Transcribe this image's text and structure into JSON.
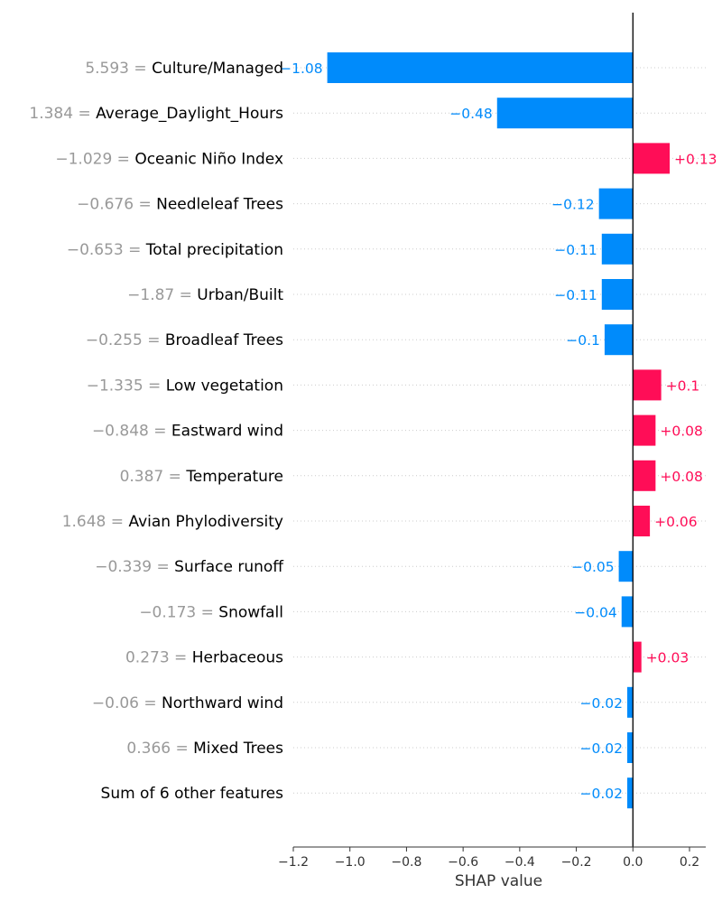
{
  "chart_data": {
    "type": "bar",
    "orientation": "horizontal",
    "xlabel": "SHAP value",
    "xlim": [
      -1.2,
      0.26
    ],
    "xticks": [
      -1.2,
      -1.0,
      -0.8,
      -0.6,
      -0.4,
      -0.2,
      0.0,
      0.2
    ],
    "xtick_labels": [
      "−1.2",
      "−1.0",
      "−0.8",
      "−0.6",
      "−0.4",
      "−0.2",
      "0.0",
      "0.2"
    ],
    "grid": "dotted horizontal row guides",
    "colors": {
      "positive": "#ff0d57",
      "negative": "#008bfb"
    },
    "features": [
      {
        "value_text": "5.593",
        "name": "Culture/Managed",
        "shap": -1.08,
        "label": "−1.08"
      },
      {
        "value_text": "1.384",
        "name": "Average_Daylight_Hours",
        "shap": -0.48,
        "label": "−0.48"
      },
      {
        "value_text": "−1.029",
        "name": "Oceanic Niño Index",
        "shap": 0.13,
        "label": "+0.13"
      },
      {
        "value_text": "−0.676",
        "name": "Needleleaf Trees",
        "shap": -0.12,
        "label": "−0.12"
      },
      {
        "value_text": "−0.653",
        "name": "Total precipitation",
        "shap": -0.11,
        "label": "−0.11"
      },
      {
        "value_text": "−1.87",
        "name": "Urban/Built",
        "shap": -0.11,
        "label": "−0.11"
      },
      {
        "value_text": "−0.255",
        "name": "Broadleaf Trees",
        "shap": -0.1,
        "label": "−0.1"
      },
      {
        "value_text": "−1.335",
        "name": "Low vegetation",
        "shap": 0.1,
        "label": "+0.1"
      },
      {
        "value_text": "−0.848",
        "name": "Eastward wind",
        "shap": 0.08,
        "label": "+0.08"
      },
      {
        "value_text": "0.387",
        "name": "Temperature",
        "shap": 0.08,
        "label": "+0.08"
      },
      {
        "value_text": "1.648",
        "name": "Avian Phylodiversity",
        "shap": 0.06,
        "label": "+0.06"
      },
      {
        "value_text": "−0.339",
        "name": "Surface runoff",
        "shap": -0.05,
        "label": "−0.05"
      },
      {
        "value_text": "−0.173",
        "name": "Snowfall",
        "shap": -0.04,
        "label": "−0.04"
      },
      {
        "value_text": "0.273",
        "name": "Herbaceous",
        "shap": 0.03,
        "label": "+0.03"
      },
      {
        "value_text": "−0.06",
        "name": "Northward wind",
        "shap": -0.02,
        "label": "−0.02"
      },
      {
        "value_text": "0.366",
        "name": "Mixed Trees",
        "shap": -0.02,
        "label": "−0.02"
      },
      {
        "value_text": "",
        "name": "Sum of 6 other features",
        "shap": -0.02,
        "label": "−0.02"
      }
    ]
  }
}
